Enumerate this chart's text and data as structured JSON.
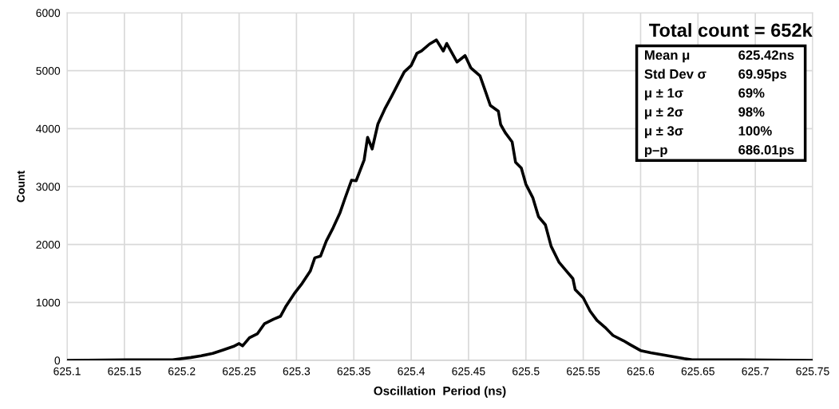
{
  "chart_data": {
    "type": "line",
    "xlabel": "Oscillation  Period (ns)",
    "ylabel": "Count",
    "series": [
      {
        "color": "#000000",
        "x": [
          625.1,
          625.152,
          625.192,
          625.208,
          625.217,
          625.227,
          625.236,
          625.245,
          625.25,
          625.253,
          625.259,
          625.266,
          625.272,
          625.28,
          625.286,
          625.291,
          625.298,
          625.305,
          625.312,
          625.316,
          625.321,
          625.326,
          625.332,
          625.338,
          625.342,
          625.348,
          625.352,
          625.359,
          625.362,
          625.366,
          625.371,
          625.377,
          625.383,
          625.389,
          625.394,
          625.4,
          625.405,
          625.409,
          625.416,
          625.422,
          625.428,
          625.431,
          625.44,
          625.447,
          625.452,
          625.46,
          625.465,
          625.469,
          625.476,
          625.478,
          625.482,
          625.488,
          625.491,
          625.496,
          625.5,
          625.506,
          625.511,
          625.517,
          625.522,
          625.529,
          625.535,
          625.541,
          625.543,
          625.55,
          625.556,
          625.562,
          625.569,
          625.576,
          625.585,
          625.591,
          625.6,
          625.609,
          625.624,
          625.638,
          625.645,
          625.688,
          625.75
        ],
        "values": [
          0,
          10,
          10,
          50,
          80,
          120,
          180,
          240,
          290,
          250,
          390,
          460,
          630,
          710,
          760,
          940,
          1150,
          1330,
          1540,
          1770,
          1800,
          2060,
          2290,
          2550,
          2780,
          3110,
          3100,
          3460,
          3850,
          3650,
          4080,
          4340,
          4560,
          4790,
          4980,
          5090,
          5300,
          5340,
          5460,
          5530,
          5340,
          5470,
          5150,
          5260,
          5050,
          4910,
          4630,
          4400,
          4300,
          4070,
          3930,
          3770,
          3420,
          3320,
          3040,
          2810,
          2480,
          2340,
          1970,
          1690,
          1550,
          1410,
          1220,
          1080,
          850,
          690,
          570,
          430,
          340,
          270,
          170,
          130,
          80,
          30,
          10,
          10,
          0
        ]
      }
    ],
    "xlim": [
      625.1,
      625.75
    ],
    "xticks": [
      625.1,
      625.15,
      625.2,
      625.25,
      625.3,
      625.35,
      625.4,
      625.45,
      625.5,
      625.55,
      625.6,
      625.65,
      625.7,
      625.75
    ],
    "ylim": [
      0,
      6000
    ],
    "yticks": [
      0,
      1000,
      2000,
      3000,
      4000,
      5000,
      6000
    ],
    "grid": true,
    "marker": "none",
    "line_style": "solid",
    "annotations": [
      "Total count = 652k",
      "Mean μ",
      "625.42ns",
      "Std Dev σ",
      "69.95ps",
      "μ ± 1σ",
      "69%",
      "μ ± 2σ",
      "98%",
      "μ ± 3σ",
      "100%",
      "p–p",
      "686.01ps"
    ]
  }
}
